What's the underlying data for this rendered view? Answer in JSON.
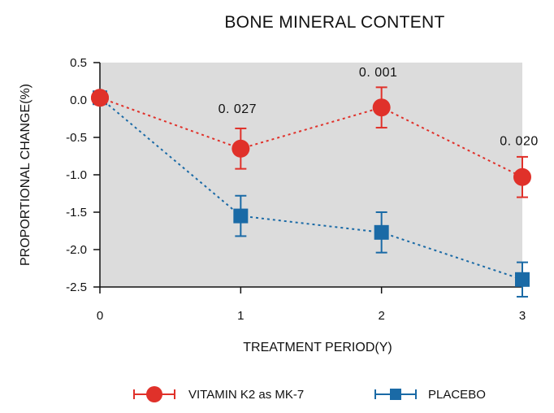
{
  "chart_data": {
    "type": "line",
    "title": "BONE MINERAL CONTENT",
    "xlabel": "TREATMENT PERIOD(Y)",
    "ylabel": "PROPORTIONAL CHANGE(%)",
    "x": [
      0,
      1,
      2,
      3
    ],
    "x_tick_labels": [
      "0",
      "1",
      "2",
      "3"
    ],
    "ylim": [
      -2.5,
      0.5
    ],
    "y_ticks": [
      0.5,
      0.0,
      -0.5,
      -1.0,
      -1.5,
      -2.0,
      -2.5
    ],
    "y_tick_labels": [
      "0.5",
      "0.0",
      "-0.5",
      "-1.0",
      "-1.5",
      "-2.0",
      "-2.5"
    ],
    "background": "#dcdcdc",
    "series": [
      {
        "name": "VITAMIN K2 as MK-7",
        "color": "#e0312a",
        "marker": "circle",
        "values": [
          0.03,
          -0.65,
          -0.1,
          -1.03
        ],
        "error": [
          0.0,
          0.27,
          0.27,
          0.27
        ]
      },
      {
        "name": "PLACEBO",
        "color": "#1a6aa6",
        "marker": "square",
        "values": [
          0.03,
          -1.55,
          -1.77,
          -2.4
        ],
        "error": [
          0.0,
          0.27,
          0.27,
          0.23
        ]
      }
    ],
    "annotations": [
      {
        "x": 1,
        "y": -0.12,
        "text": "0. 027"
      },
      {
        "x": 2,
        "y": 0.37,
        "text": "0. 001"
      },
      {
        "x": 3,
        "y": -0.55,
        "text": "0. 020"
      }
    ],
    "legend_position": "bottom"
  }
}
